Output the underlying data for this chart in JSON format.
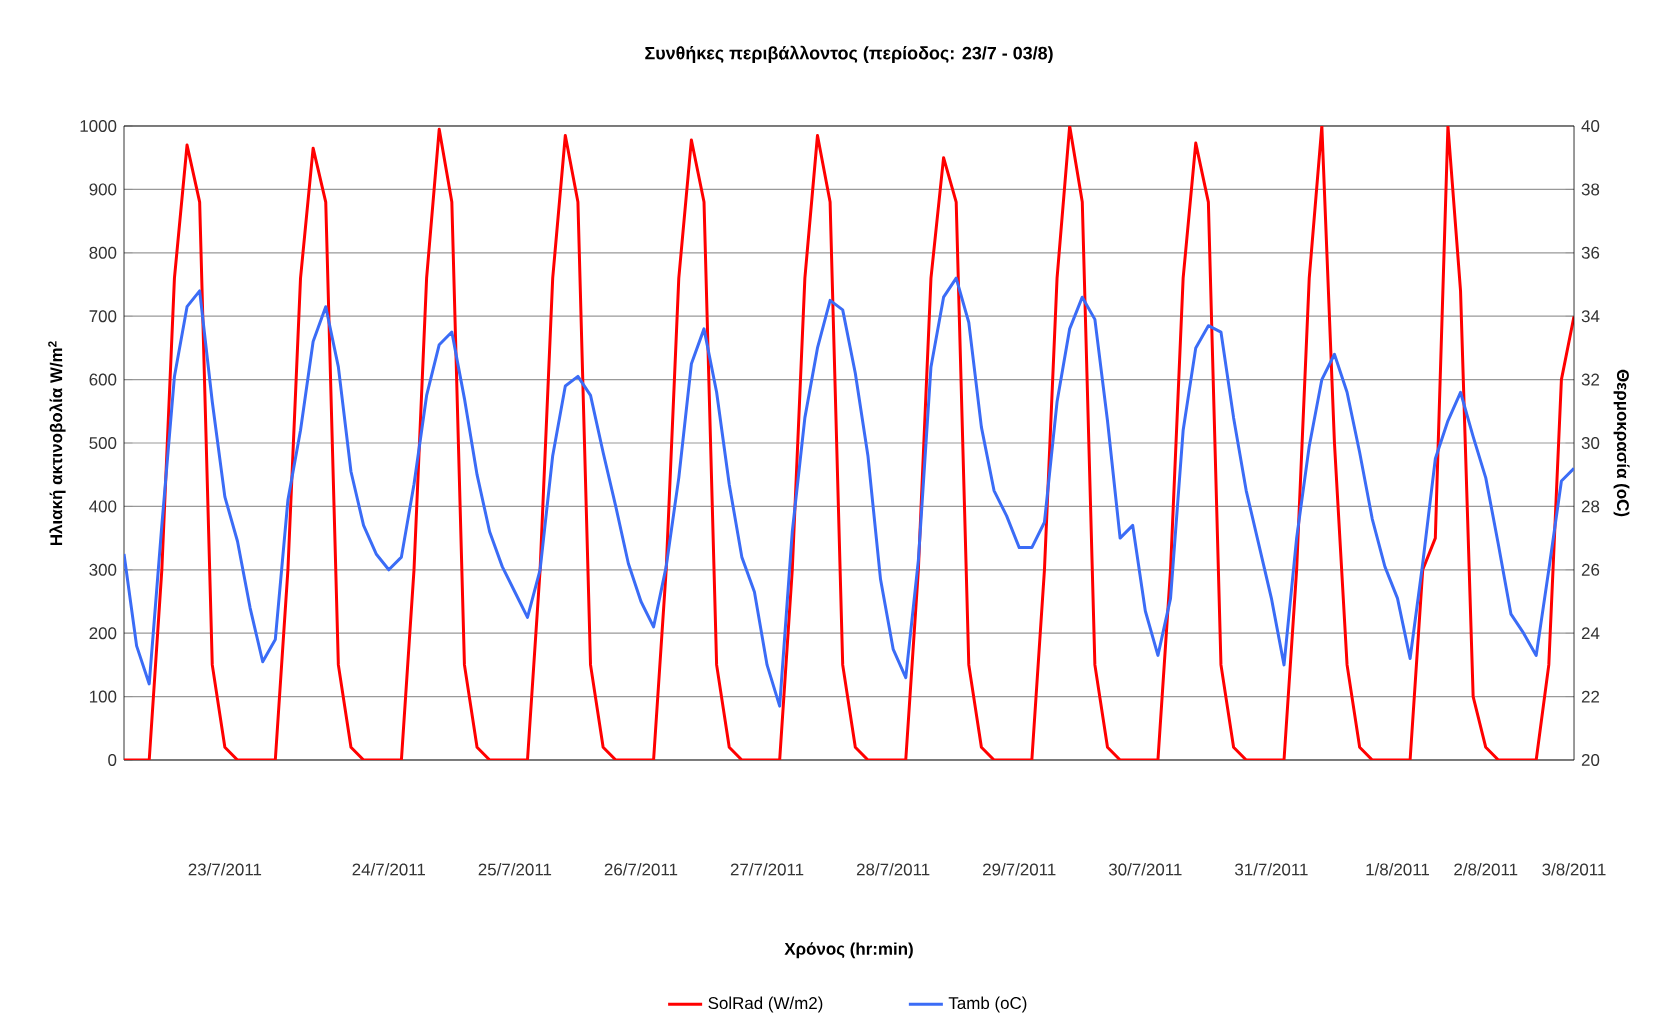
{
  "chart_data": {
    "type": "line",
    "title": "Συνθήκες περιβάλλοντος (περίοδος: 23/7 - 03/8)",
    "xlabel": "Χρόνος (hr:min)",
    "ylabel": "Ηλιακή ακτινοβολία W/m$^{2}$",
    "y2label": "Θερμοκρασία (oC)",
    "categories": [
      null,
      null,
      null,
      null,
      null,
      null,
      null,
      null,
      "23/7/2011",
      null,
      null,
      null,
      null,
      null,
      null,
      null,
      null,
      null,
      null,
      null,
      null,
      "24/7/2011",
      null,
      null,
      null,
      null,
      null,
      null,
      null,
      null,
      null,
      "25/7/2011",
      null,
      null,
      null,
      null,
      null,
      null,
      null,
      null,
      null,
      "26/7/2011",
      null,
      null,
      null,
      null,
      null,
      null,
      null,
      null,
      null,
      "27/7/2011",
      null,
      null,
      null,
      null,
      null,
      null,
      null,
      null,
      null,
      "28/7/2011",
      null,
      null,
      null,
      null,
      null,
      null,
      null,
      null,
      null,
      "29/7/2011",
      null,
      null,
      null,
      null,
      null,
      null,
      null,
      null,
      null,
      "30/7/2011",
      null,
      null,
      null,
      null,
      null,
      null,
      null,
      null,
      null,
      "31/7/2011",
      null,
      null,
      null,
      null,
      null,
      null,
      null,
      null,
      null,
      "1/8/2011",
      null,
      null,
      null,
      null,
      null,
      null,
      "2/8/2011",
      null,
      null,
      null,
      null,
      null,
      null,
      "3/8/2011"
    ],
    "ylim": [
      0,
      1000
    ],
    "yticks": [
      0,
      100,
      200,
      300,
      400,
      500,
      600,
      700,
      800,
      900,
      1000
    ],
    "y2lim": [
      20,
      40
    ],
    "y2ticks": [
      20,
      22,
      24,
      26,
      28,
      30,
      32,
      34,
      36,
      38,
      40
    ],
    "grid": "y",
    "legend": "bottom",
    "marker": "none",
    "line_style": "solid",
    "series": [
      {
        "name": "SolRad (W/m2)",
        "color": "#ff0000",
        "values": [
          0,
          0,
          0,
          300,
          760,
          970,
          880,
          150,
          20,
          0,
          0,
          0,
          0,
          300,
          760,
          965,
          880,
          150,
          20,
          0,
          0,
          0,
          0,
          300,
          760,
          995,
          880,
          150,
          20,
          0,
          0,
          0,
          0,
          300,
          760,
          985,
          880,
          150,
          20,
          0,
          0,
          0,
          0,
          300,
          760,
          978,
          880,
          150,
          20,
          0,
          0,
          0,
          0,
          300,
          760,
          985,
          880,
          150,
          20,
          0,
          0,
          0,
          0,
          300,
          760,
          950,
          880,
          150,
          20,
          0,
          0,
          0,
          0,
          300,
          760,
          1000,
          880,
          150,
          20,
          0,
          0,
          0,
          0,
          300,
          760,
          973,
          880,
          150,
          20,
          0,
          0,
          0,
          0,
          300,
          760,
          1000,
          500,
          150,
          20,
          0,
          0,
          0,
          0,
          300,
          350,
          1000,
          740,
          100,
          20,
          0,
          0,
          0,
          0,
          150,
          600,
          700
        ]
      },
      {
        "name": "Tamb (oC)",
        "color": "#3b6cf6",
        "axis": "y2",
        "values": [
          26.5,
          23.6,
          22.4,
          27.4,
          32.1,
          34.3,
          34.8,
          31.3,
          28.3,
          26.9,
          24.8,
          23.1,
          23.8,
          28.2,
          30.4,
          33.2,
          34.3,
          32.4,
          29.1,
          27.4,
          26.5,
          26.0,
          26.4,
          28.7,
          31.5,
          33.1,
          33.5,
          31.4,
          29,
          27.2,
          26.1,
          25.3,
          24.5,
          26,
          29.6,
          31.8,
          32.1,
          31.5,
          29.7,
          28,
          26.2,
          25,
          24.2,
          26.1,
          28.9,
          32.5,
          33.6,
          31.6,
          28.7,
          26.4,
          25.3,
          23,
          21.7,
          27.2,
          30.8,
          33,
          34.5,
          34.2,
          32.2,
          29.6,
          25.7,
          23.5,
          22.6,
          26.3,
          32.4,
          34.6,
          35.2,
          33.8,
          30.5,
          28.5,
          27.7,
          26.7,
          26.7,
          27.5,
          31.3,
          33.6,
          34.6,
          33.9,
          30.7,
          27,
          27.4,
          24.7,
          23.3,
          25.1,
          30.4,
          33,
          33.7,
          33.5,
          30.8,
          28.5,
          26.8,
          25.1,
          23,
          27,
          29.9,
          32,
          32.8,
          31.6,
          29.7,
          27.6,
          26.1,
          25.1,
          23.2,
          26.2,
          29.5,
          30.7,
          31.6,
          30.2,
          28.9,
          26.8,
          24.6,
          24,
          23.3,
          26,
          28.8,
          29.2
        ]
      }
    ]
  }
}
